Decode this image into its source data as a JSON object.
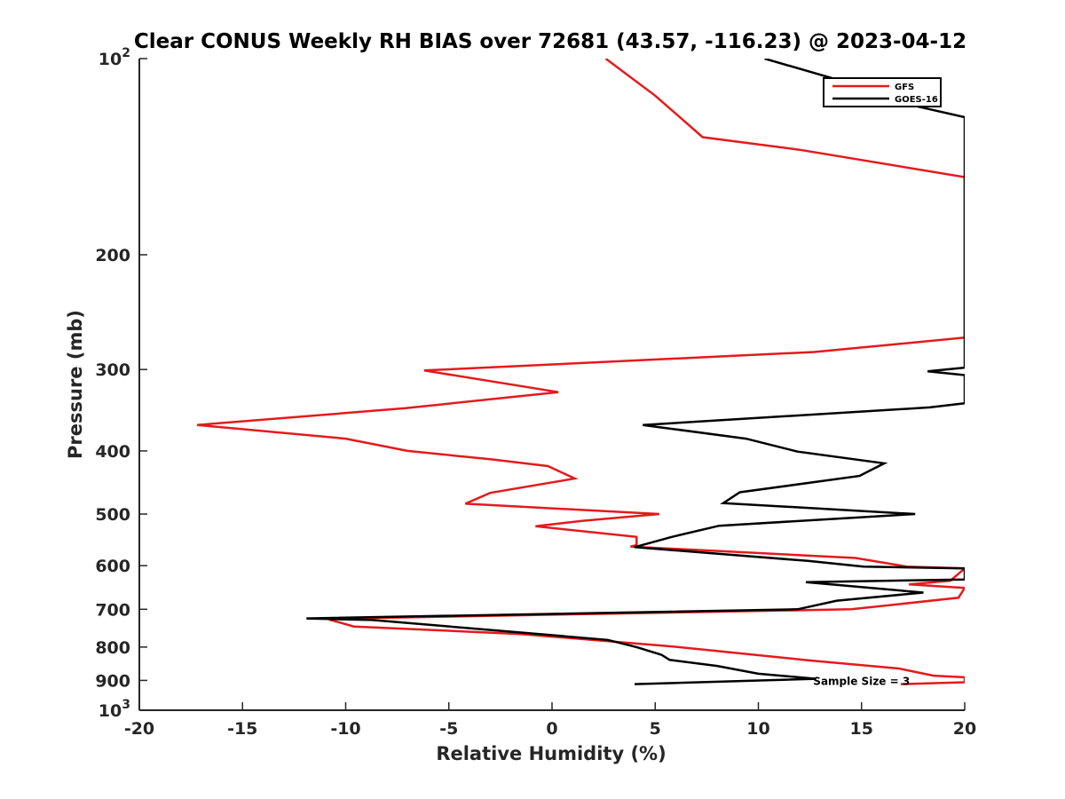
{
  "chart_data": {
    "type": "line",
    "title": "Clear CONUS Weekly RH BIAS over 72681 (43.57, -116.23) @ 2023-04-12",
    "xlabel": "Relative Humidity (%)",
    "ylabel": "Pressure (mb)",
    "xlim": [
      -20,
      20
    ],
    "ylim": [
      100,
      1000
    ],
    "y_scale": "log",
    "y_reversed": true,
    "grid": false,
    "legend_position": "top-right",
    "x_ticks": [
      -20,
      -15,
      -10,
      -5,
      0,
      5,
      10,
      15,
      20
    ],
    "x_tick_labels": [
      "-20",
      "-15",
      "-10",
      "-5",
      "0",
      "5",
      "10",
      "15",
      "20"
    ],
    "y_ticks": [
      {
        "value": 100,
        "base": "10",
        "exp": "2"
      },
      {
        "value": 200,
        "label": "200"
      },
      {
        "value": 300,
        "label": "300"
      },
      {
        "value": 400,
        "label": "400"
      },
      {
        "value": 500,
        "label": "500"
      },
      {
        "value": 600,
        "label": "600"
      },
      {
        "value": 700,
        "label": "700"
      },
      {
        "value": 800,
        "label": "800"
      },
      {
        "value": 900,
        "label": "900"
      },
      {
        "value": 1000,
        "base": "10",
        "exp": "3"
      }
    ],
    "series": [
      {
        "name": "GFS",
        "color": "#e41a1c",
        "points": [
          [
            2.6,
            100
          ],
          [
            5.0,
            114
          ],
          [
            7.3,
            132
          ],
          [
            12,
            138
          ],
          [
            20,
            152
          ],
          [
            20,
            268
          ],
          [
            12.7,
            282
          ],
          [
            -6.2,
            301
          ],
          [
            0.3,
            325
          ],
          [
            -7.1,
            344
          ],
          [
            -17.2,
            365
          ],
          [
            -10,
            383
          ],
          [
            -7,
            400
          ],
          [
            -3,
            412
          ],
          [
            -0.2,
            422
          ],
          [
            1.1,
            441
          ],
          [
            -3.0,
            464
          ],
          [
            -4.2,
            482
          ],
          [
            5.2,
            500
          ],
          [
            1.5,
            512
          ],
          [
            -0.8,
            522
          ],
          [
            4.1,
            542
          ],
          [
            4.1,
            558
          ],
          [
            3.8,
            561
          ],
          [
            14.7,
            584
          ],
          [
            17.2,
            602
          ],
          [
            20,
            606
          ],
          [
            19.3,
            633
          ],
          [
            17.3,
            641
          ],
          [
            20,
            649
          ],
          [
            19.7,
            672
          ],
          [
            14.5,
            700
          ],
          [
            -10.0,
            723
          ],
          [
            -10.8,
            726
          ],
          [
            -9.6,
            744
          ],
          [
            -1.5,
            764
          ],
          [
            -0.2,
            770
          ],
          [
            5.8,
            798
          ],
          [
            12.4,
            838
          ],
          [
            16.8,
            863
          ],
          [
            18.5,
            885
          ],
          [
            20,
            890
          ],
          [
            20,
            906
          ],
          [
            16.9,
            912
          ]
        ]
      },
      {
        "name": "GOES-16",
        "color": "#000000",
        "points": [
          [
            10.3,
            100
          ],
          [
            16.5,
            114
          ],
          [
            17.5,
            118
          ],
          [
            20,
            123
          ],
          [
            20,
            298
          ],
          [
            18.2,
            302
          ],
          [
            20,
            306
          ],
          [
            20,
            338
          ],
          [
            18.3,
            343
          ],
          [
            4.4,
            365
          ],
          [
            9.4,
            383
          ],
          [
            11.9,
            401
          ],
          [
            16.1,
            418
          ],
          [
            14.9,
            437
          ],
          [
            9.1,
            463
          ],
          [
            8.3,
            481
          ],
          [
            17.6,
            500
          ],
          [
            8.1,
            521
          ],
          [
            5.8,
            542
          ],
          [
            4.0,
            562
          ],
          [
            12.4,
            590
          ],
          [
            15.1,
            602
          ],
          [
            20,
            606
          ],
          [
            20,
            630
          ],
          [
            12.3,
            636
          ],
          [
            18.0,
            660
          ],
          [
            13.8,
            679
          ],
          [
            11.9,
            700
          ],
          [
            -11.9,
            723
          ],
          [
            -8.7,
            727
          ],
          [
            -1.5,
            760
          ],
          [
            2.7,
            780
          ],
          [
            4.1,
            800
          ],
          [
            5.3,
            822
          ],
          [
            5.7,
            837
          ],
          [
            8.0,
            855
          ],
          [
            10.0,
            879
          ],
          [
            12.8,
            895
          ],
          [
            4.0,
            912
          ]
        ]
      }
    ],
    "legend": [
      {
        "label": "GFS",
        "color": "#e41a1c"
      },
      {
        "label": "GOES-16",
        "color": "#000000"
      }
    ],
    "annotation": {
      "text": "Sample Size = 3",
      "x": 15,
      "y": 900
    }
  }
}
